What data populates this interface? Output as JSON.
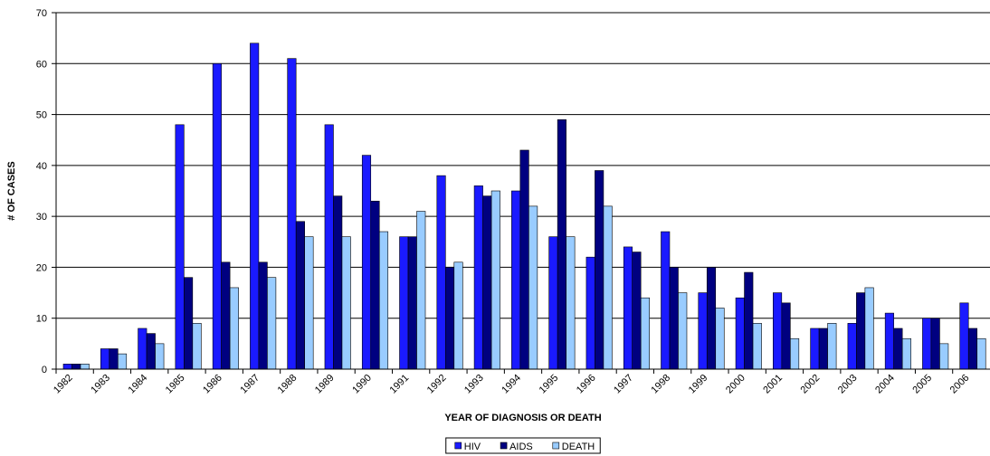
{
  "chart_data": {
    "type": "bar",
    "y_label": "# OF CASES",
    "x_label": "YEAR OF DIAGNOSIS OR DEATH",
    "categories": [
      "1982",
      "1983",
      "1984",
      "1985",
      "1986",
      "1987",
      "1988",
      "1989",
      "1990",
      "1991",
      "1992",
      "1993",
      "1994",
      "1995",
      "1996",
      "1997",
      "1998",
      "1999",
      "2000",
      "2001",
      "2002",
      "2003",
      "2004",
      "2005",
      "2006"
    ],
    "series": [
      {
        "name": "HIV",
        "color": "#1a1aff",
        "values": [
          1,
          4,
          8,
          48,
          60,
          64,
          61,
          48,
          42,
          26,
          38,
          36,
          35,
          26,
          22,
          24,
          27,
          15,
          14,
          15,
          8,
          9,
          11,
          10,
          13
        ]
      },
      {
        "name": "AIDS",
        "color": "#000080",
        "values": [
          1,
          4,
          7,
          18,
          21,
          21,
          29,
          34,
          33,
          26,
          20,
          34,
          43,
          49,
          39,
          23,
          20,
          20,
          19,
          13,
          8,
          15,
          8,
          10,
          8
        ]
      },
      {
        "name": "DEATH",
        "color": "#99ccff",
        "values": [
          1,
          3,
          5,
          9,
          16,
          18,
          26,
          26,
          27,
          31,
          21,
          35,
          32,
          26,
          32,
          14,
          15,
          12,
          9,
          6,
          9,
          16,
          6,
          5,
          6
        ]
      }
    ],
    "ylim": [
      0,
      70
    ],
    "yticks": [
      0,
      10,
      20,
      30,
      40,
      50,
      60,
      70
    ],
    "grid": true,
    "legend": "bottom"
  }
}
